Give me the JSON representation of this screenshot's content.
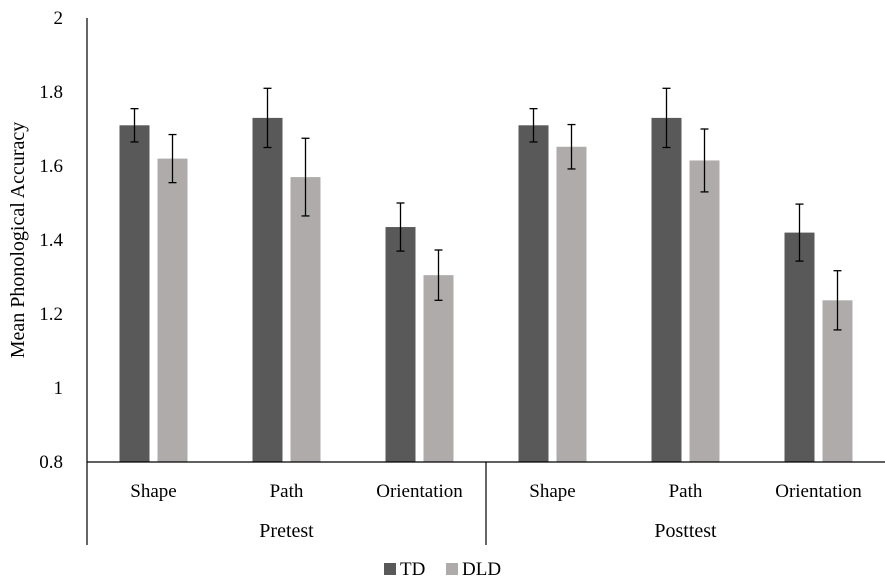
{
  "chart_data": {
    "type": "bar",
    "title": "",
    "xlabel": "",
    "ylabel": "Mean Phonological Accuracy",
    "ylim": [
      0.8,
      2
    ],
    "yticks": [
      "0.8",
      "1",
      "1.2",
      "1.4",
      "1.6",
      "1.8",
      "2"
    ],
    "grid": false,
    "legend_position": "bottom",
    "groups": [
      {
        "label": "Pretest",
        "categories": [
          "Shape",
          "Path",
          "Orientation"
        ]
      },
      {
        "label": "Posttest",
        "categories": [
          "Shape",
          "Path",
          "Orientation"
        ]
      }
    ],
    "categories": [
      "Shape",
      "Path",
      "Orientation",
      "Shape",
      "Path",
      "Orientation"
    ],
    "series": [
      {
        "name": "TD",
        "color": "#595959",
        "values": [
          1.71,
          1.73,
          1.435,
          1.71,
          1.73,
          1.42
        ],
        "error": [
          0.045,
          0.08,
          0.065,
          0.045,
          0.08,
          0.077
        ]
      },
      {
        "name": "DLD",
        "color": "#afabab",
        "values": [
          1.62,
          1.57,
          1.305,
          1.652,
          1.615,
          1.237
        ],
        "error": [
          0.065,
          0.105,
          0.068,
          0.06,
          0.085,
          0.08
        ]
      }
    ]
  }
}
